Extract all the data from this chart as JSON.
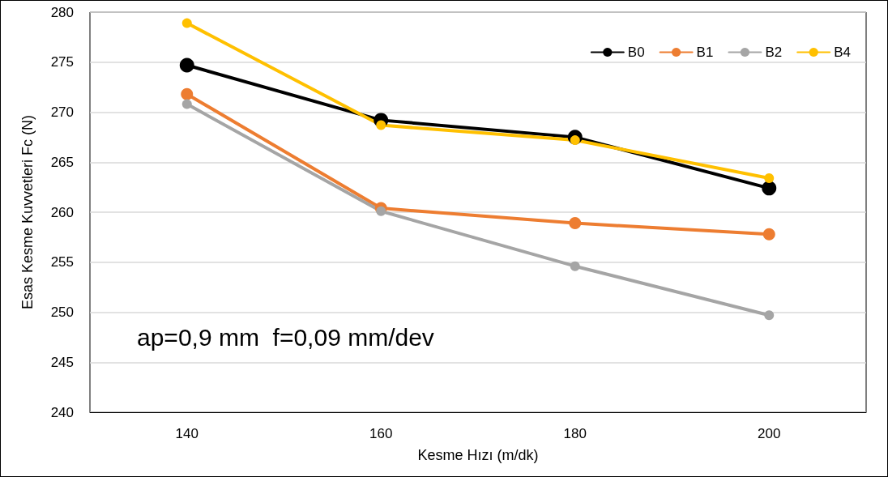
{
  "chart_data": {
    "type": "line",
    "xlabel": "Kesme Hızı (m/dk)",
    "ylabel": "Esas Kesme Kuvvetleri Fc (N)",
    "categories": [
      "140",
      "160",
      "180",
      "200"
    ],
    "series": [
      {
        "name": "B0",
        "color": "#000000",
        "values": [
          274.7,
          269.2,
          267.5,
          262.4
        ]
      },
      {
        "name": "B1",
        "color": "#ed7d31",
        "values": [
          271.8,
          260.4,
          258.9,
          257.8
        ]
      },
      {
        "name": "B2",
        "color": "#a5a5a5",
        "values": [
          270.8,
          260.1,
          254.6,
          249.7
        ]
      },
      {
        "name": "B4",
        "color": "#ffc000",
        "values": [
          278.9,
          268.7,
          267.2,
          263.4
        ]
      }
    ],
    "ylim": [
      240,
      280
    ],
    "yticks": [
      240,
      245,
      250,
      255,
      260,
      265,
      270,
      275,
      280
    ],
    "grid": "y",
    "legend": "top right",
    "marker": "circle",
    "line_style": "solid",
    "annotations": [
      "ap=0,9 mm  f=0,09 mm/dev"
    ]
  }
}
